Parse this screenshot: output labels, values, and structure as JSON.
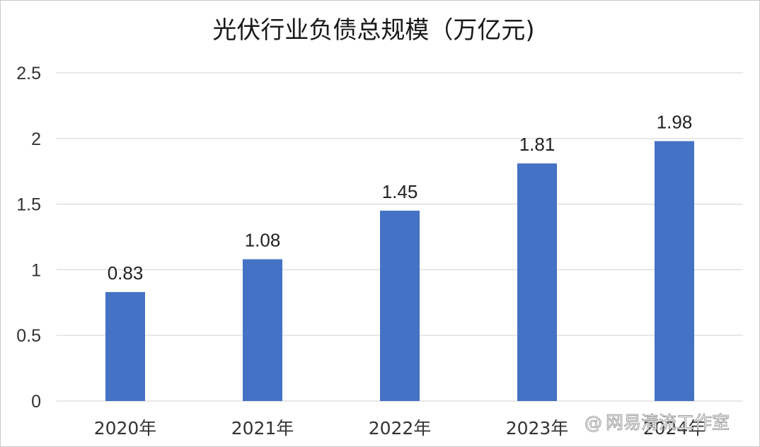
{
  "chart_data": {
    "type": "bar",
    "title": "光伏行业负债总规模（万亿元)",
    "categories": [
      "2020年",
      "2021年",
      "2022年",
      "2023年",
      "2024年"
    ],
    "values": [
      0.83,
      1.08,
      1.45,
      1.81,
      1.98
    ],
    "data_labels": [
      "0.83",
      "1.08",
      "1.45",
      "1.81",
      "1.98"
    ],
    "yticks": [
      "0",
      "0.5",
      "1",
      "1.5",
      "2",
      "2.5"
    ],
    "ytick_values": [
      0,
      0.5,
      1,
      1.5,
      2,
      2.5
    ],
    "ylim": [
      0,
      2.5
    ],
    "xlabel": "",
    "ylabel": "",
    "grid": true,
    "legend": "none",
    "bar_color": "#4472c4",
    "grid_color": "#d9d9d9"
  },
  "watermark": {
    "icon": "at-sign-icon",
    "symbol": "@",
    "text": "网易清流工作室"
  }
}
